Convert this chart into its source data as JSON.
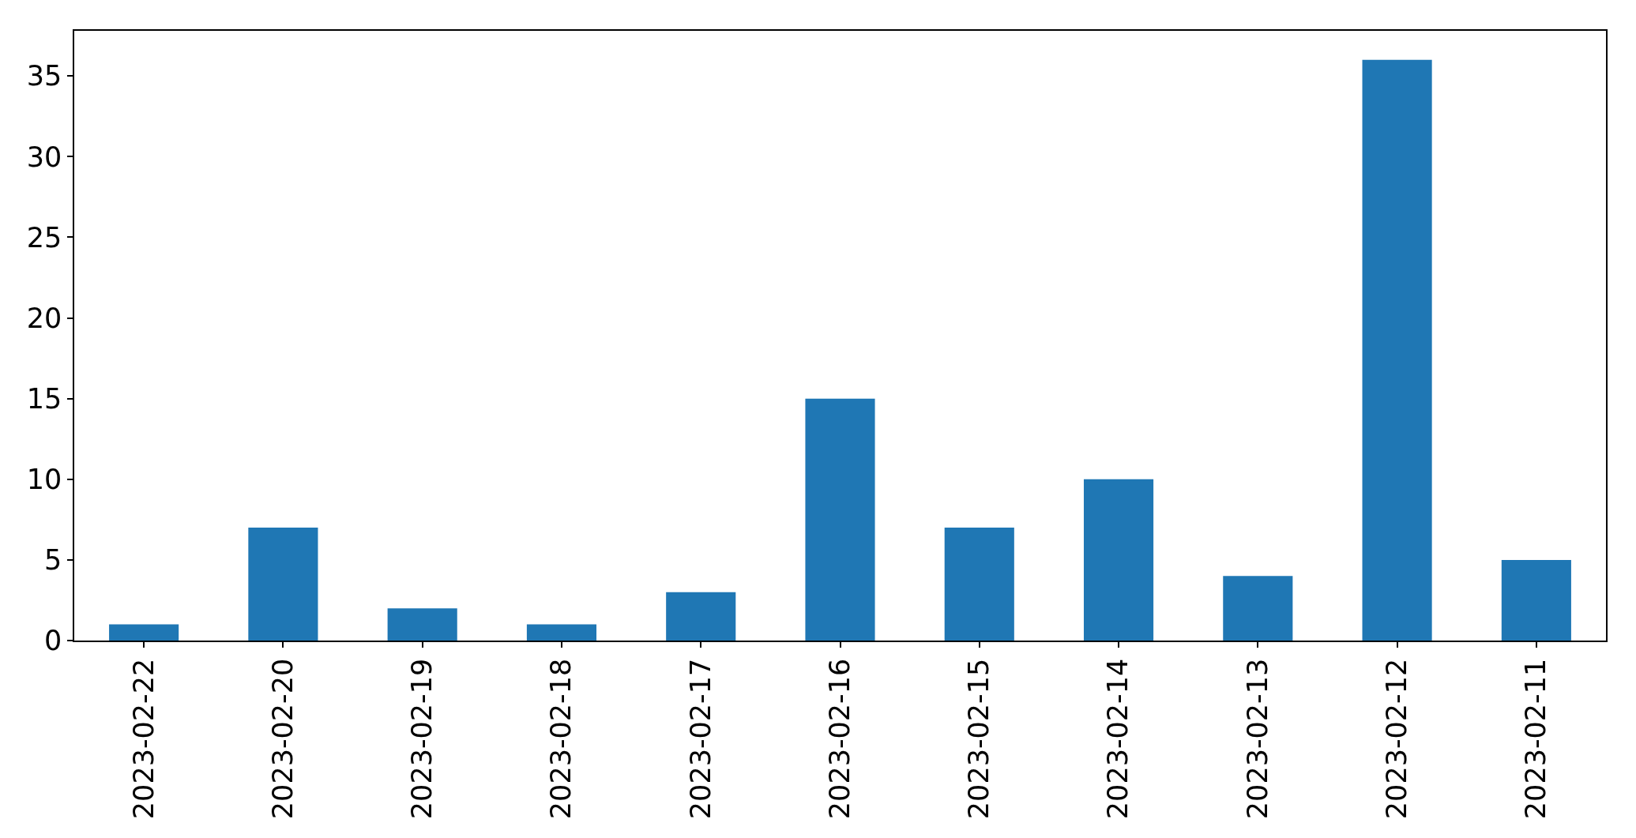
{
  "chart_data": {
    "type": "bar",
    "categories": [
      "2023-02-22",
      "2023-02-20",
      "2023-02-19",
      "2023-02-18",
      "2023-02-17",
      "2023-02-16",
      "2023-02-15",
      "2023-02-14",
      "2023-02-13",
      "2023-02-12",
      "2023-02-11"
    ],
    "values": [
      1,
      7,
      2,
      1,
      3,
      15,
      7,
      10,
      4,
      36,
      5
    ],
    "color": "#1f77b4",
    "ylim": [
      0,
      37.8
    ],
    "yticks": [
      0,
      5,
      10,
      15,
      20,
      25,
      30,
      35
    ],
    "grid": false
  }
}
